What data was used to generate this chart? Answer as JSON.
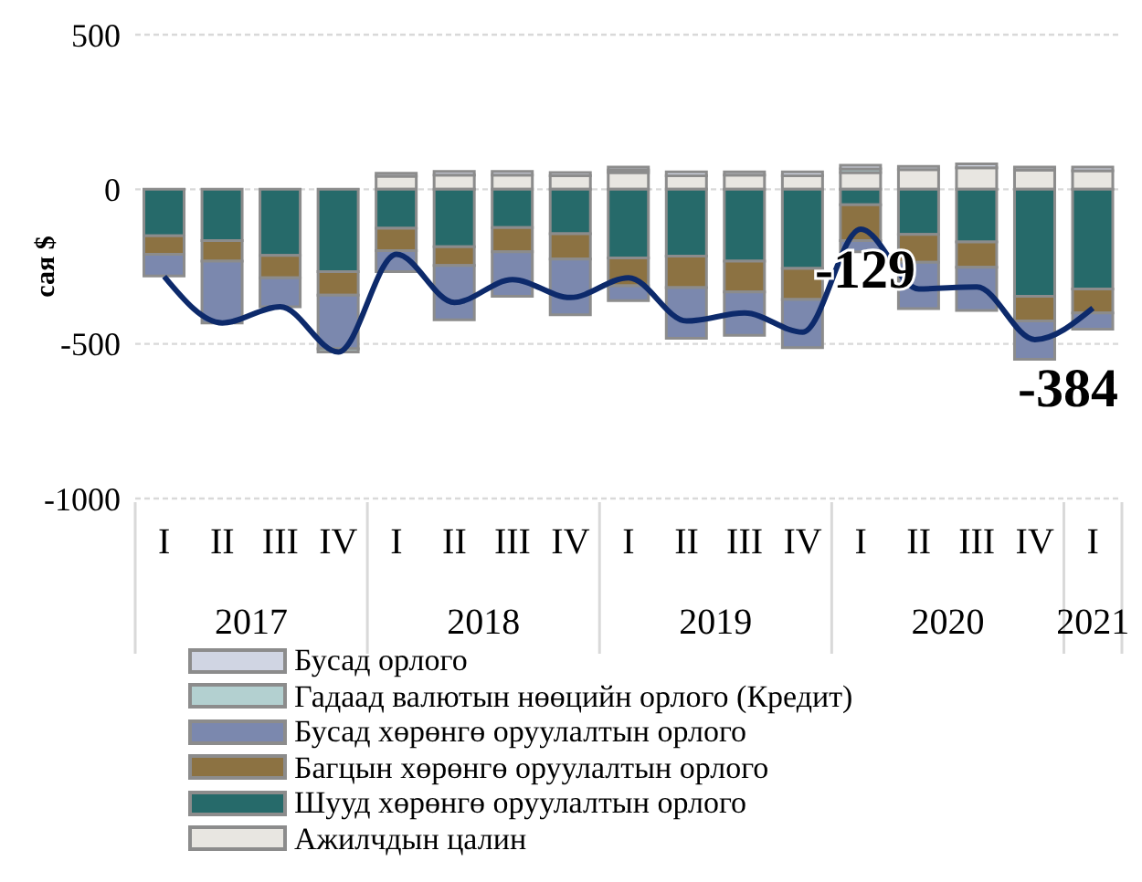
{
  "chart_data": {
    "type": "bar",
    "stacked": true,
    "ylabel": "сая $",
    "categories": [
      "I",
      "II",
      "III",
      "IV",
      "I",
      "II",
      "III",
      "IV",
      "I",
      "II",
      "III",
      "IV",
      "I",
      "II",
      "III",
      "IV",
      "I"
    ],
    "ylim": [
      -1000,
      500
    ],
    "yticks": [
      -1000,
      -500,
      0,
      500
    ],
    "grid": "y",
    "legend": "bottom",
    "annotations": [
      "2017",
      "2018",
      "2019",
      "2020",
      "2021"
    ],
    "series": [
      {
        "name": "Ажилчдын цалин",
        "color": "#e8e6e1",
        "values": [
          0,
          0,
          0,
          0,
          42,
          46,
          46,
          44,
          54,
          44,
          46,
          44,
          54,
          64,
          70,
          62,
          60
        ]
      },
      {
        "name": "Шууд хөрөнгө оруулалтын орлого",
        "color": "#266a6a",
        "values": [
          -150,
          -166,
          -214,
          -266,
          -126,
          -186,
          -124,
          -144,
          -222,
          -216,
          -232,
          -256,
          -50,
          -146,
          -170,
          -346,
          -322
        ]
      },
      {
        "name": "Багцын хөрөнгө оруулалтын орлого",
        "color": "#8c7242",
        "values": [
          -60,
          -66,
          -72,
          -76,
          -72,
          -60,
          -78,
          -82,
          -90,
          -102,
          -100,
          -100,
          -116,
          -90,
          -82,
          -80,
          -78
        ]
      },
      {
        "name": "Бусад хөрөнгө оруулалтын орлого",
        "color": "#7b88ae",
        "values": [
          -70,
          -200,
          -94,
          -174,
          -68,
          -176,
          -144,
          -180,
          -48,
          -164,
          -140,
          -156,
          -36,
          -150,
          -140,
          -124,
          -52
        ]
      },
      {
        "name": "Гадаад валютын нөөцийн орлого (Кредит)",
        "color": "#b3d0d0",
        "values": [
          0,
          0,
          0,
          -10,
          0,
          0,
          0,
          0,
          8,
          0,
          0,
          0,
          12,
          0,
          0,
          0,
          0
        ]
      },
      {
        "name": "Бусад орлого",
        "color": "#d0d5e3",
        "values": [
          0,
          0,
          0,
          0,
          10,
          12,
          12,
          10,
          10,
          12,
          10,
          12,
          12,
          10,
          12,
          10,
          12
        ]
      },
      {
        "type": "line",
        "color": "#0d2a6b",
        "values": [
          -282,
          -432,
          -380,
          -526,
          -210,
          -366,
          -292,
          -350,
          -286,
          -426,
          -400,
          -462,
          -129,
          -322,
          -316,
          -486,
          -384
        ],
        "value_labels": [
          null,
          null,
          null,
          null,
          null,
          null,
          null,
          null,
          null,
          null,
          null,
          null,
          "-129",
          null,
          null,
          null,
          "-384"
        ]
      }
    ]
  }
}
